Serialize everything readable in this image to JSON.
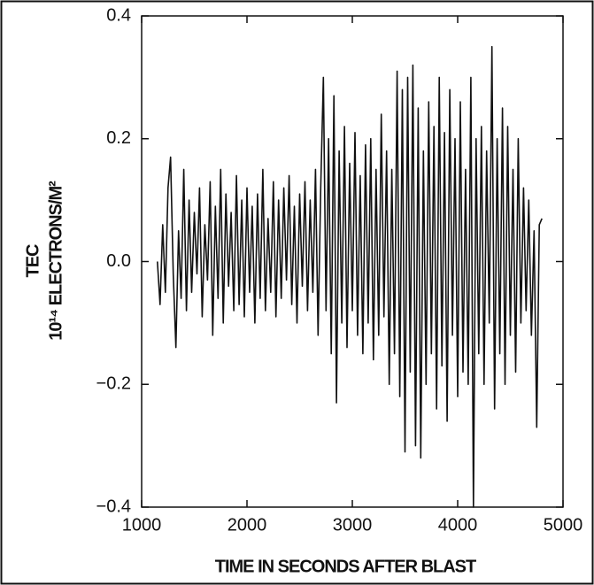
{
  "chart_data": {
    "type": "line",
    "y_label_line1": "TEC",
    "y_label_line2": "10¹⁴ ELECTRONS/M²",
    "x_label": "TIME IN SECONDS AFTER BLAST",
    "xlim": [
      1000,
      5000
    ],
    "xticks": [
      1000,
      2000,
      3000,
      4000,
      5000
    ],
    "ylim": [
      -0.4,
      0.4
    ],
    "yticks": [
      {
        "value": -0.4,
        "label": "−0.4"
      },
      {
        "value": -0.2,
        "label": "−0.2"
      },
      {
        "value": 0,
        "label": "0.0"
      },
      0.2,
      0.4
    ],
    "series": [
      {
        "color": "#111111",
        "x": [
          1150,
          1175,
          1200,
          1225,
          1250,
          1275,
          1300,
          1325,
          1350,
          1375,
          1400,
          1425,
          1450,
          1475,
          1500,
          1525,
          1550,
          1575,
          1600,
          1625,
          1650,
          1675,
          1700,
          1725,
          1750,
          1775,
          1800,
          1825,
          1850,
          1875,
          1900,
          1925,
          1950,
          1975,
          2000,
          2025,
          2050,
          2075,
          2100,
          2125,
          2150,
          2175,
          2200,
          2225,
          2250,
          2275,
          2300,
          2325,
          2350,
          2375,
          2400,
          2425,
          2450,
          2475,
          2500,
          2525,
          2550,
          2575,
          2600,
          2625,
          2650,
          2675,
          2700,
          2725,
          2750,
          2775,
          2800,
          2825,
          2850,
          2875,
          2900,
          2925,
          2950,
          2975,
          3000,
          3025,
          3050,
          3075,
          3100,
          3125,
          3150,
          3175,
          3200,
          3225,
          3250,
          3275,
          3300,
          3325,
          3350,
          3375,
          3400,
          3425,
          3450,
          3475,
          3500,
          3525,
          3550,
          3575,
          3600,
          3625,
          3650,
          3675,
          3700,
          3725,
          3750,
          3775,
          3800,
          3825,
          3850,
          3875,
          3900,
          3925,
          3950,
          3975,
          4000,
          4025,
          4050,
          4075,
          4100,
          4125,
          4150,
          4175,
          4200,
          4225,
          4250,
          4275,
          4300,
          4325,
          4350,
          4375,
          4400,
          4425,
          4450,
          4475,
          4500,
          4525,
          4550,
          4575,
          4600,
          4625,
          4650,
          4675,
          4700,
          4725,
          4750,
          4775,
          4800
        ],
        "values": [
          0.0,
          -0.07,
          0.06,
          -0.05,
          0.12,
          0.17,
          -0.02,
          -0.14,
          0.05,
          -0.06,
          0.15,
          -0.08,
          0.1,
          -0.05,
          0.08,
          -0.02,
          0.12,
          -0.09,
          0.06,
          -0.03,
          0.13,
          -0.12,
          0.09,
          -0.06,
          0.15,
          -0.1,
          0.11,
          -0.04,
          0.08,
          -0.08,
          0.14,
          -0.07,
          0.1,
          -0.09,
          0.12,
          -0.05,
          0.09,
          -0.1,
          0.11,
          -0.06,
          0.15,
          -0.08,
          0.07,
          -0.05,
          0.13,
          -0.09,
          0.1,
          -0.06,
          0.12,
          -0.03,
          0.14,
          -0.07,
          0.09,
          -0.1,
          0.11,
          -0.04,
          0.13,
          -0.08,
          0.1,
          -0.05,
          0.15,
          -0.12,
          0.12,
          0.3,
          -0.08,
          0.2,
          -0.15,
          0.27,
          -0.23,
          0.18,
          -0.1,
          0.22,
          -0.14,
          0.16,
          -0.08,
          0.21,
          -0.12,
          0.14,
          -0.15,
          0.19,
          -0.1,
          0.2,
          -0.16,
          0.15,
          -0.12,
          0.24,
          -0.09,
          0.18,
          -0.2,
          0.15,
          -0.15,
          0.31,
          -0.22,
          0.28,
          -0.31,
          0.3,
          -0.18,
          0.32,
          -0.3,
          0.25,
          -0.32,
          0.18,
          -0.2,
          0.26,
          -0.15,
          0.22,
          -0.24,
          0.3,
          -0.17,
          0.21,
          -0.26,
          0.28,
          -0.12,
          0.2,
          -0.22,
          0.26,
          -0.18,
          0.15,
          -0.2,
          0.3,
          -0.4,
          0.2,
          -0.15,
          0.22,
          -0.2,
          0.18,
          -0.1,
          0.35,
          -0.24,
          0.2,
          -0.15,
          0.25,
          -0.2,
          0.22,
          -0.12,
          0.15,
          -0.18,
          0.2,
          -0.1,
          0.12,
          -0.08,
          0.1,
          -0.12,
          0.05,
          -0.27,
          0.06,
          0.07
        ]
      }
    ]
  }
}
